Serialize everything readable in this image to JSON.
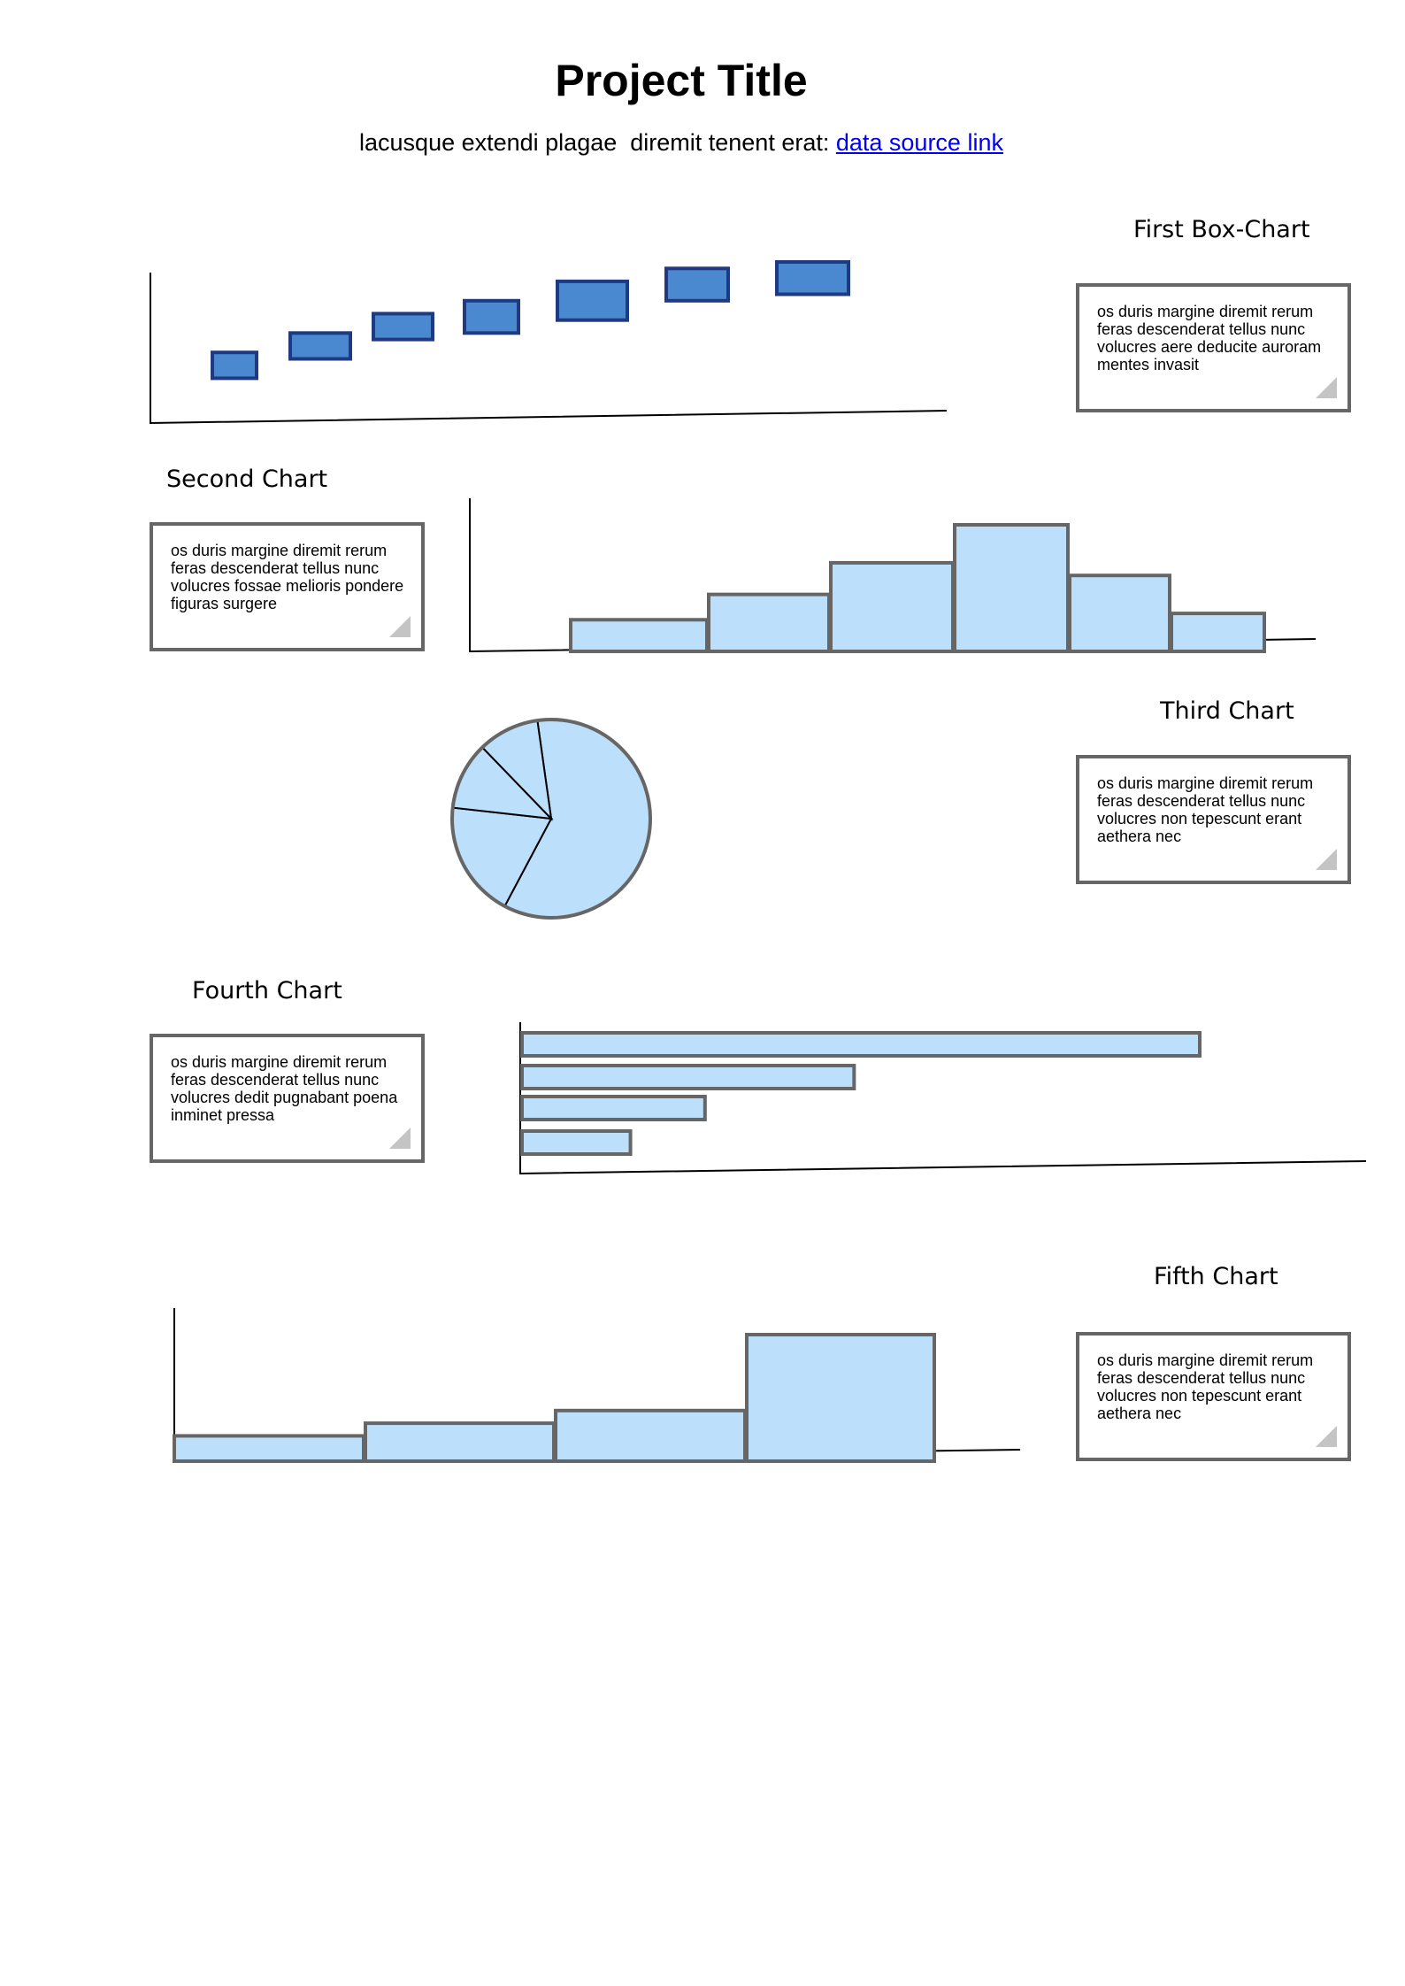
{
  "header": {
    "title": "Project Title",
    "subtitle": "lacusque extendi plagae  diremit tenent erat: ",
    "link_label": "data source link"
  },
  "charts": [
    {
      "label": "First Box-Chart",
      "note": "os duris margine diremit rerum feras descenderat tellus nunc volucres aere deducite auroram mentes invasit"
    },
    {
      "label": "Second Chart",
      "note": "os duris margine diremit rerum feras descenderat tellus nunc volucres fossae melioris pondere figuras surgere"
    },
    {
      "label": "Third Chart",
      "note": "os duris margine diremit rerum feras descenderat tellus nunc volucres non tepescunt erant aethera nec"
    },
    {
      "label": "Fourth Chart",
      "note": "os duris margine diremit rerum feras descenderat tellus nunc volucres dedit pugnabant poena inminet pressa"
    },
    {
      "label": "Fifth Chart",
      "note": "os duris margine diremit rerum feras descenderat tellus nunc volucres non tepescunt erant aethera nec"
    }
  ],
  "colors": {
    "box_fill": "#4a89d0",
    "box_stroke": "#1f3a80",
    "bar_fill": "#bcdffc",
    "bar_stroke": "#666666",
    "axis": "#000000"
  },
  "chart_data": [
    {
      "type": "box",
      "boxes": [
        {
          "low": 1.0,
          "high": 3.0
        },
        {
          "low": 2.5,
          "high": 4.5
        },
        {
          "low": 4.0,
          "high": 6.0
        },
        {
          "low": 4.5,
          "high": 7.0
        },
        {
          "low": 5.5,
          "high": 8.5
        },
        {
          "low": 7.0,
          "high": 9.5
        },
        {
          "low": 7.5,
          "high": 10.0
        }
      ]
    },
    {
      "type": "bar",
      "values": [
        2.5,
        4.5,
        7.0,
        10.0,
        6.0,
        3.0
      ]
    },
    {
      "type": "pie",
      "values": [
        60,
        19,
        11,
        10
      ]
    },
    {
      "type": "bar",
      "orientation": "horizontal",
      "values": [
        100,
        49,
        27,
        16
      ]
    },
    {
      "type": "bar",
      "values": [
        2,
        3,
        4,
        10
      ]
    }
  ]
}
